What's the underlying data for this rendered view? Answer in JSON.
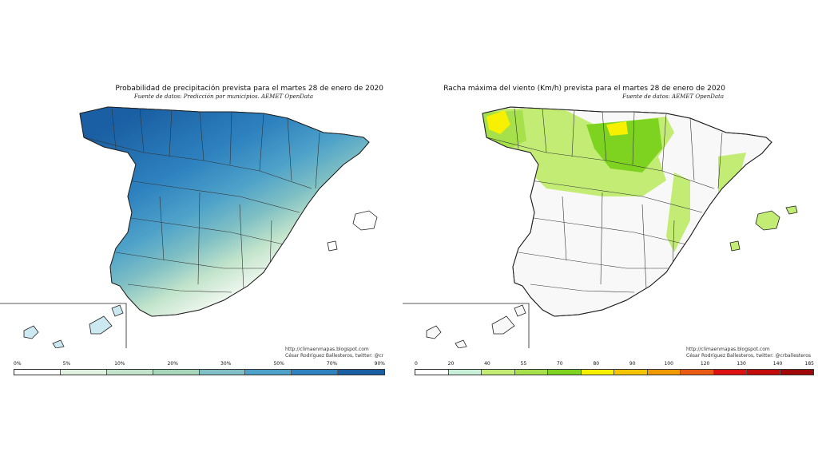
{
  "left_panel": {
    "title": "Probabilidad de precipitación prevista para el martes 28 de enero de 2020",
    "subtitle": "Fuente de datos: Predicción por municipios. AEMET OpenData",
    "credit_line1": "http://climaenmapas.blogspot.com",
    "credit_line2": "César Rodríguez Ballesteros, twitter: @cr",
    "legend": {
      "labels": [
        "0%",
        "5%",
        "10%",
        "20%",
        "30%",
        "50%",
        "70%",
        "90%"
      ],
      "colors": [
        "#ffffff",
        "#e0f1e2",
        "#c3e4cb",
        "#a8d6bb",
        "#80c0c4",
        "#4ea2c9",
        "#2e82bf",
        "#1a5fa3"
      ]
    }
  },
  "right_panel": {
    "title": "Racha máxima del viento (Km/h) prevista para el martes 28 de enero de 2020",
    "subtitle": "Fuente de datos: AEMET OpenData",
    "credit_line1": "http://climaenmapas.blogspot.com",
    "credit_line2": "César Rodríguez Ballesteros, twitter: @crballesteros",
    "legend": {
      "labels": [
        "0",
        "20",
        "40",
        "55",
        "70",
        "80",
        "90",
        "100",
        "120",
        "130",
        "140",
        "185"
      ],
      "colors": [
        "#ffffff",
        "#c8f0d8",
        "#c2ec74",
        "#a6e04a",
        "#7ed321",
        "#f7f000",
        "#f5c400",
        "#f09a00",
        "#e95b12",
        "#dd1111",
        "#c40b0b",
        "#a00808"
      ]
    }
  },
  "colors": {
    "border": "#222222",
    "land": "#ffffff",
    "precip_high": "#1a5fa3",
    "wind_green": "#7ed321",
    "wind_yellow": "#f7f000"
  }
}
